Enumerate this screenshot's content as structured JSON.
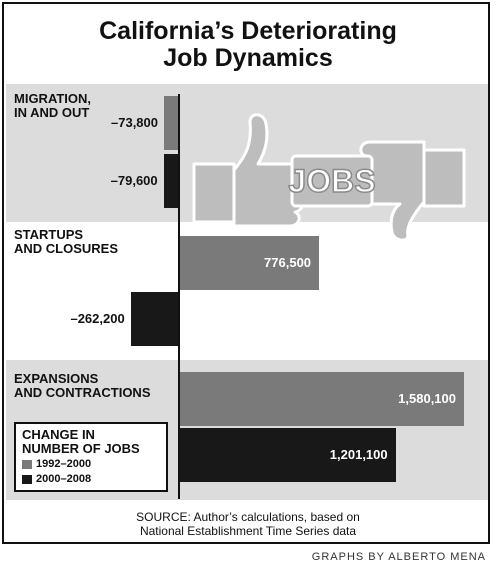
{
  "chart_data": {
    "type": "bar",
    "orientation": "horizontal",
    "title": [
      "California’s Deteriorating",
      "Job Dynamics"
    ],
    "categories": [
      {
        "id": "migration",
        "label": [
          "MIGRATION,",
          "IN AND OUT"
        ]
      },
      {
        "id": "startups",
        "label": [
          "STARTUPS",
          "AND CLOSURES"
        ]
      },
      {
        "id": "expansions",
        "label": [
          "EXPANSIONS",
          "AND CONTRACTIONS"
        ]
      }
    ],
    "series": [
      {
        "name": "1992–2000",
        "color": "#7a7a7a",
        "values": [
          -73800,
          776500,
          1580100
        ]
      },
      {
        "name": "2000–2008",
        "color": "#181818",
        "values": [
          -79600,
          -262200,
          1201100
        ]
      }
    ],
    "value_labels": {
      "1992–2000": [
        "–73,800",
        "776,500",
        "1,580,100"
      ],
      "2000–2008": [
        "–79,600",
        "–262,200",
        "1,201,100"
      ]
    },
    "legend_title": [
      "CHANGE IN",
      "NUMBER OF JOBS"
    ],
    "legend_position": "bottom-left",
    "xlim": [
      -262200,
      1580100
    ],
    "grid": false,
    "illustration": {
      "icon": "thumbs-up-thumbs-down-jobs",
      "text": "JOBS"
    },
    "band_color": "#dcdcdc"
  },
  "source": [
    "SOURCE: Author’s calculations, based on",
    "National Establishment Time Series data"
  ],
  "credit": "GRAPHS BY ALBERTO MENA"
}
